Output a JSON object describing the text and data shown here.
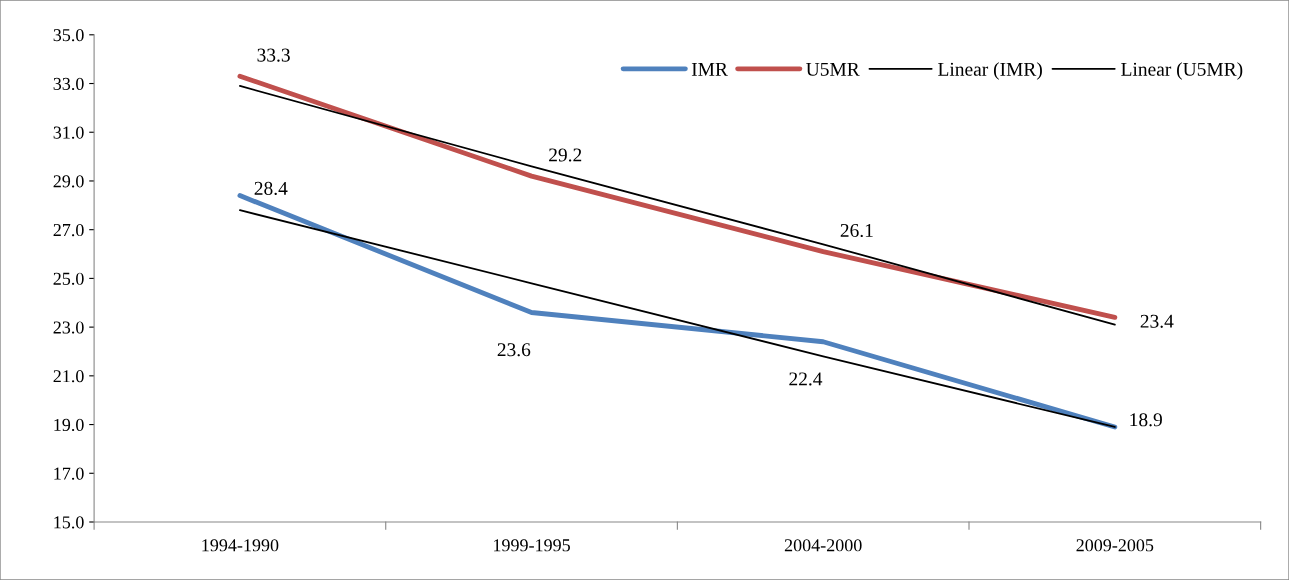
{
  "chart_data": {
    "type": "line",
    "categories": [
      "1994-1990",
      "1999-1995",
      "2004-2000",
      "2009-2005"
    ],
    "ylim": [
      15,
      35
    ],
    "yticks": [
      {
        "value": 15,
        "label": "15.0"
      },
      {
        "value": 17,
        "label": "17.0"
      },
      {
        "value": 19,
        "label": "19.0"
      },
      {
        "value": 21,
        "label": "21.0"
      },
      {
        "value": 23,
        "label": "23.0"
      },
      {
        "value": 25,
        "label": "25.0"
      },
      {
        "value": 27,
        "label": "27.0"
      },
      {
        "value": 29,
        "label": "29.0"
      },
      {
        "value": 31,
        "label": "31.0"
      },
      {
        "value": 33,
        "label": "33.0"
      },
      {
        "value": 35,
        "label": "35.0"
      }
    ],
    "grid": false,
    "legend": "top right",
    "marker": "none",
    "line_style": "solid",
    "series": [
      {
        "name": "IMR",
        "color": "#4f81bd",
        "values": [
          28.4,
          23.6,
          22.4,
          18.9
        ],
        "value_labels": [
          "28.4",
          "23.6",
          "22.4",
          "18.9"
        ]
      },
      {
        "name": "U5MR",
        "color": "#c0504d",
        "values": [
          33.3,
          29.2,
          26.1,
          23.4
        ],
        "value_labels": [
          "33.3",
          "29.2",
          "26.1",
          "23.4"
        ]
      },
      {
        "name": "Linear (IMR)",
        "color": "#000000",
        "values": [
          27.8,
          24.8,
          21.8,
          18.9
        ]
      },
      {
        "name": "Linear (U5MR)",
        "color": "#000000",
        "values": [
          32.9,
          29.6,
          26.4,
          23.1
        ]
      }
    ]
  }
}
